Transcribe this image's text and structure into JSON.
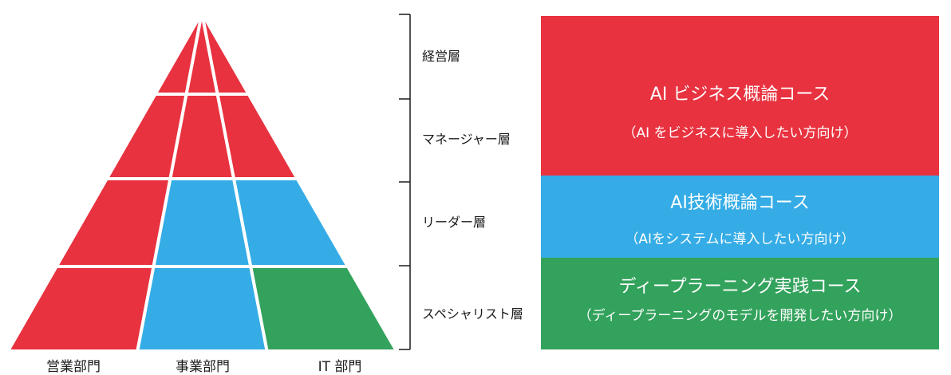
{
  "colors": {
    "red": "#E8323F",
    "blue": "#35ACE6",
    "green": "#33A25C",
    "bracket": "#1a1a1a",
    "divider": "#ffffff"
  },
  "departments": [
    "営業部門",
    "事業部門",
    "IT 部門"
  ],
  "layers": [
    "経営層",
    "マネージャー層",
    "リーダー層",
    "スペシャリスト層"
  ],
  "pyramid_cell_colors": [
    [
      "red",
      "red",
      "red"
    ],
    [
      "red",
      "red",
      "red"
    ],
    [
      "red",
      "blue",
      "blue"
    ],
    [
      "red",
      "blue",
      "green"
    ]
  ],
  "courses": [
    {
      "title": "AI ビジネス概論コース",
      "subtitle": "（AI をビジネスに導入したい方向け）",
      "color": "red"
    },
    {
      "title": "AI技術概論コース",
      "subtitle": "（AIをシステムに導入したい方向け）",
      "color": "blue"
    },
    {
      "title": "ディープラーニング実践コース",
      "subtitle": "（ディープラーニングのモデルを開発したい方向け）",
      "color": "green"
    }
  ]
}
